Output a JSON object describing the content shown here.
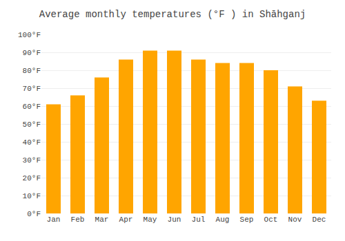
{
  "chart_data": {
    "type": "bar",
    "title": "Average monthly temperatures (°F ) in Shāhganj",
    "categories": [
      "Jan",
      "Feb",
      "Mar",
      "Apr",
      "May",
      "Jun",
      "Jul",
      "Aug",
      "Sep",
      "Oct",
      "Nov",
      "Dec"
    ],
    "values": [
      61,
      66,
      76,
      86,
      91,
      91,
      86,
      84,
      84,
      80,
      71,
      63
    ],
    "color": "#FFA500",
    "ylim": [
      0,
      100
    ],
    "yticks": [
      {
        "value": 0,
        "label": "0°F"
      },
      {
        "value": 10,
        "label": "10°F"
      },
      {
        "value": 20,
        "label": "20°F"
      },
      {
        "value": 30,
        "label": "30°F"
      },
      {
        "value": 40,
        "label": "40°F"
      },
      {
        "value": 50,
        "label": "50°F"
      },
      {
        "value": 60,
        "label": "60°F"
      },
      {
        "value": 70,
        "label": "70°F"
      },
      {
        "value": 80,
        "label": "80°F"
      },
      {
        "value": 90,
        "label": "90°F"
      },
      {
        "value": 100,
        "label": "100°F"
      }
    ],
    "grid": true
  }
}
